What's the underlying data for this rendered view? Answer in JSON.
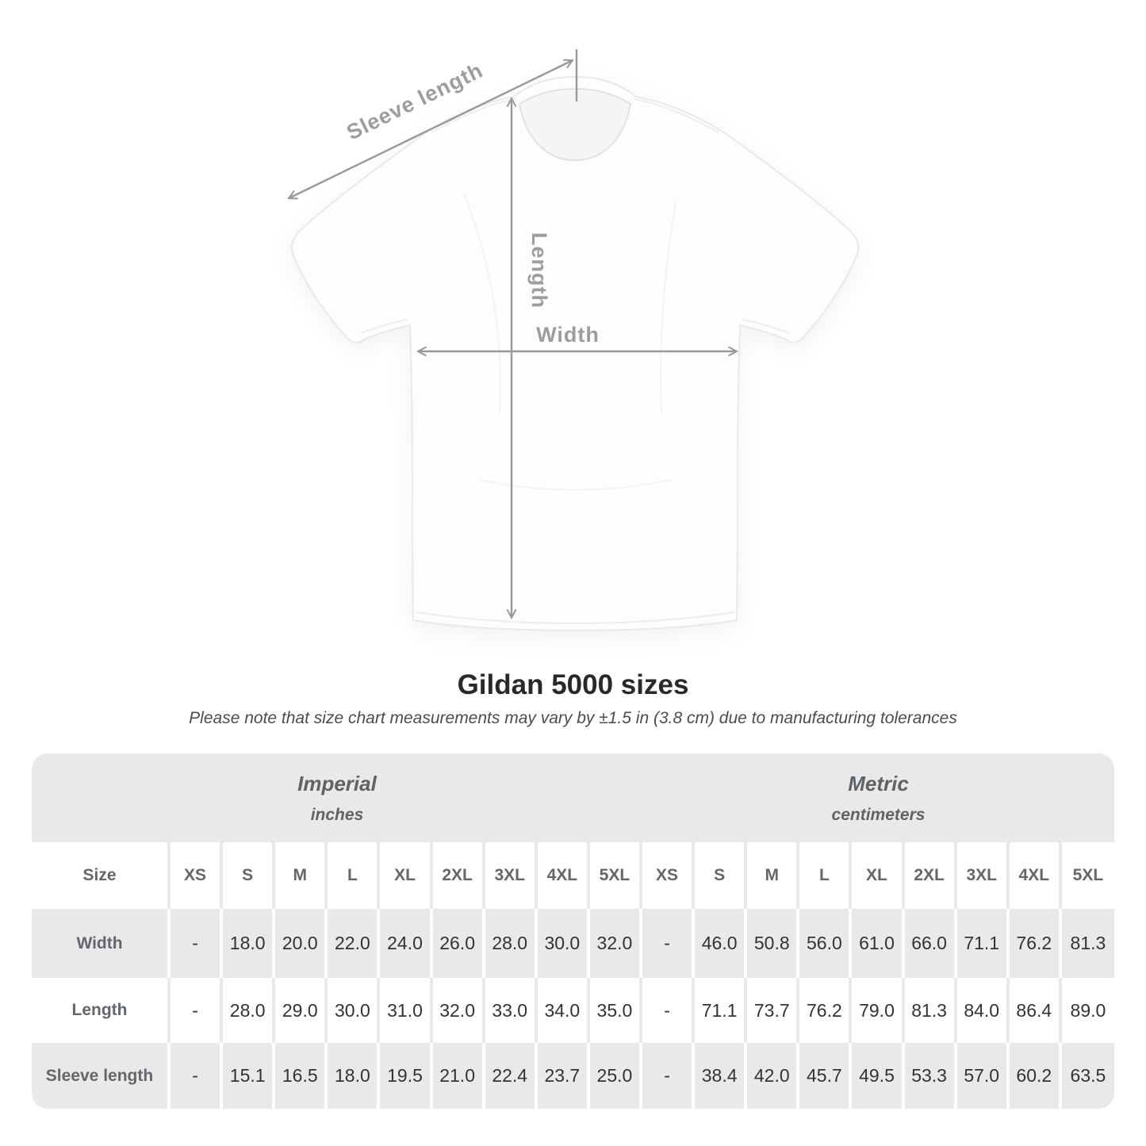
{
  "shirt_diagram": {
    "labels": {
      "sleeve_length": "Sleeve length",
      "length": "Length",
      "width": "Width"
    },
    "arrow_color": "#97999c",
    "label_color": "#9b9ea1"
  },
  "heading": {
    "title": "Gildan 5000 sizes",
    "subtitle": "Please note that size chart measurements may vary by ±1.5 in (3.8 cm) due to manufacturing tolerances"
  },
  "chart_data": {
    "type": "table",
    "title": "Gildan 5000 sizes",
    "groups": [
      {
        "label": "Imperial",
        "sublabel": "inches"
      },
      {
        "label": "Metric",
        "sublabel": "centimeters"
      }
    ],
    "size_header_label": "Size",
    "sizes": [
      "XS",
      "S",
      "M",
      "L",
      "XL",
      "2XL",
      "3XL",
      "4XL",
      "5XL"
    ],
    "rows": [
      {
        "label": "Width",
        "imperial": [
          "-",
          "18.0",
          "20.0",
          "22.0",
          "24.0",
          "26.0",
          "28.0",
          "30.0",
          "32.0"
        ],
        "metric": [
          "-",
          "46.0",
          "50.8",
          "56.0",
          "61.0",
          "66.0",
          "71.1",
          "76.2",
          "81.3"
        ]
      },
      {
        "label": "Length",
        "imperial": [
          "-",
          "28.0",
          "29.0",
          "30.0",
          "31.0",
          "32.0",
          "33.0",
          "34.0",
          "35.0"
        ],
        "metric": [
          "-",
          "71.1",
          "73.7",
          "76.2",
          "79.0",
          "81.3",
          "84.0",
          "86.4",
          "89.0"
        ]
      },
      {
        "label": "Sleeve length",
        "imperial": [
          "-",
          "15.1",
          "16.5",
          "18.0",
          "19.5",
          "21.0",
          "22.4",
          "23.7",
          "25.0"
        ],
        "metric": [
          "-",
          "38.4",
          "42.0",
          "45.7",
          "49.5",
          "53.3",
          "57.0",
          "60.2",
          "63.5"
        ]
      }
    ]
  },
  "colors": {
    "table_band": "#e9e9ea",
    "header_text": "#61676c",
    "value_text": "#303337",
    "group_text": "#5d6367",
    "title_text": "#28292b",
    "subtitle_text": "#4b4c4e"
  }
}
